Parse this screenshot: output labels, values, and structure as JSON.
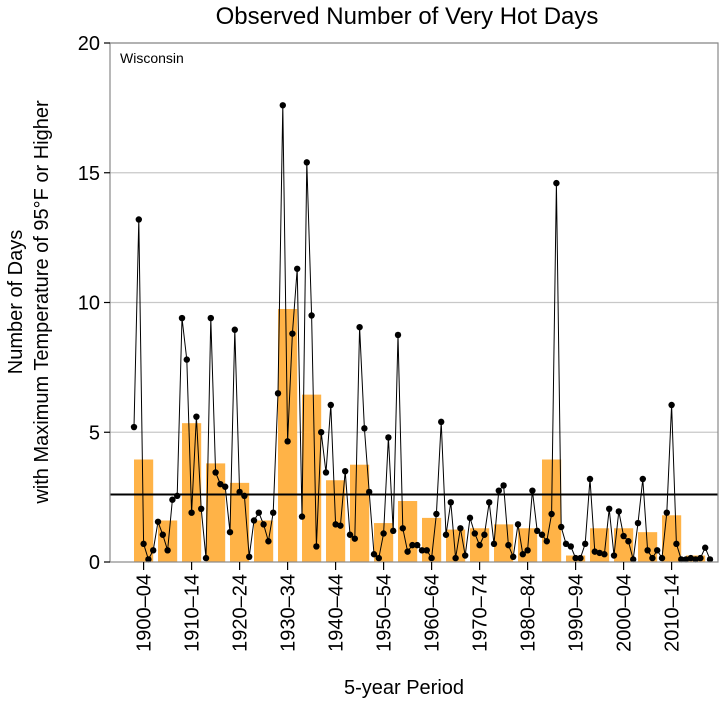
{
  "chart_data": {
    "type": "bar",
    "title": "Observed Number of Very Hot Days",
    "annotation": "Wisconsin",
    "xlabel": "5-year Period",
    "ylabel_line1": "Number of Days",
    "ylabel_line2": "with Maximum Temperature of 95°F or Higher",
    "ylim": [
      0,
      20
    ],
    "yticks": [
      0,
      5,
      10,
      15,
      20
    ],
    "grid": true,
    "average_line": 2.6,
    "categories": [
      "1900–04",
      "1905–09",
      "1910–14",
      "1915–19",
      "1920–24",
      "1925–29",
      "1930–34",
      "1935–39",
      "1940–44",
      "1945–49",
      "1950–54",
      "1955–59",
      "1960–64",
      "1965–69",
      "1970–74",
      "1975–79",
      "1980–84",
      "1985–89",
      "1990–94",
      "1995–99",
      "2000–04",
      "2005–09",
      "2010–14",
      "2015–19"
    ],
    "xtick_labels": [
      "1900–04",
      "1910–14",
      "1920–24",
      "1930–34",
      "1940–44",
      "1950–54",
      "1960–64",
      "1970–74",
      "1980–84",
      "1990–94",
      "2000–04",
      "2010–14"
    ],
    "series": [
      {
        "type": "bar",
        "values": [
          3.95,
          1.6,
          5.35,
          3.8,
          3.05,
          1.6,
          9.75,
          6.45,
          3.15,
          3.75,
          1.5,
          2.35,
          1.7,
          1.25,
          1.3,
          1.45,
          1.3,
          3.95,
          0.25,
          1.3,
          1.3,
          1.15,
          1.8,
          0.25
        ]
      },
      {
        "type": "line",
        "x": [
          1900,
          1901,
          1902,
          1903,
          1904,
          1905,
          1906,
          1907,
          1908,
          1909,
          1910,
          1911,
          1912,
          1913,
          1914,
          1915,
          1916,
          1917,
          1918,
          1919,
          1920,
          1921,
          1922,
          1923,
          1924,
          1925,
          1926,
          1927,
          1928,
          1929,
          1930,
          1931,
          1932,
          1933,
          1934,
          1935,
          1936,
          1937,
          1938,
          1939,
          1940,
          1941,
          1942,
          1943,
          1944,
          1945,
          1946,
          1947,
          1948,
          1949,
          1950,
          1951,
          1952,
          1953,
          1954,
          1955,
          1956,
          1957,
          1958,
          1959,
          1960,
          1961,
          1962,
          1963,
          1964,
          1965,
          1966,
          1967,
          1968,
          1969,
          1970,
          1971,
          1972,
          1973,
          1974,
          1975,
          1976,
          1977,
          1978,
          1979,
          1980,
          1981,
          1982,
          1983,
          1984,
          1985,
          1986,
          1987,
          1988,
          1989,
          1990,
          1991,
          1992,
          1993,
          1994,
          1995,
          1996,
          1997,
          1998,
          1999,
          2000,
          2001,
          2002,
          2003,
          2004,
          2005,
          2006,
          2007,
          2008,
          2009,
          2010,
          2011,
          2012,
          2013,
          2014,
          2015,
          2016,
          2017,
          2018,
          2019,
          2020
        ],
        "values": [
          5.2,
          13.2,
          0.7,
          0.1,
          0.45,
          1.55,
          1.05,
          0.45,
          2.4,
          2.55,
          9.4,
          7.8,
          1.9,
          5.6,
          2.05,
          0.15,
          9.4,
          3.45,
          3.0,
          2.9,
          1.15,
          8.95,
          2.7,
          2.55,
          0.2,
          1.6,
          1.9,
          1.45,
          0.8,
          1.9,
          6.5,
          17.6,
          4.65,
          8.8,
          11.3,
          1.75,
          15.4,
          9.5,
          0.6,
          5.0,
          3.45,
          6.05,
          1.45,
          1.4,
          3.5,
          1.05,
          0.9,
          9.05,
          5.15,
          2.7,
          0.3,
          0.15,
          1.1,
          4.8,
          1.2,
          8.75,
          1.3,
          0.4,
          0.65,
          0.65,
          0.45,
          0.45,
          0.15,
          1.85,
          5.4,
          1.05,
          2.3,
          0.15,
          1.3,
          0.25,
          1.7,
          1.1,
          0.65,
          1.05,
          2.3,
          0.7,
          2.75,
          2.95,
          0.65,
          0.2,
          1.45,
          0.3,
          0.45,
          2.75,
          1.2,
          1.05,
          0.8,
          1.85,
          14.6,
          1.35,
          0.7,
          0.6,
          0.15,
          0.15,
          0.7,
          3.2,
          0.4,
          0.35,
          0.3,
          2.05,
          0.25,
          1.95,
          1.0,
          0.8,
          0.1,
          1.5,
          3.2,
          0.45,
          0.15,
          0.45,
          0.15,
          1.9,
          6.05,
          0.7,
          0.1,
          0.1,
          0.15,
          0.1,
          0.15,
          0.55,
          0.1
        ]
      }
    ],
    "colors": {
      "bar": "#ffb347",
      "line": "#000000",
      "average": "#000000",
      "grid": "#c8c8c8",
      "annotation": "#8a8a8a"
    }
  }
}
